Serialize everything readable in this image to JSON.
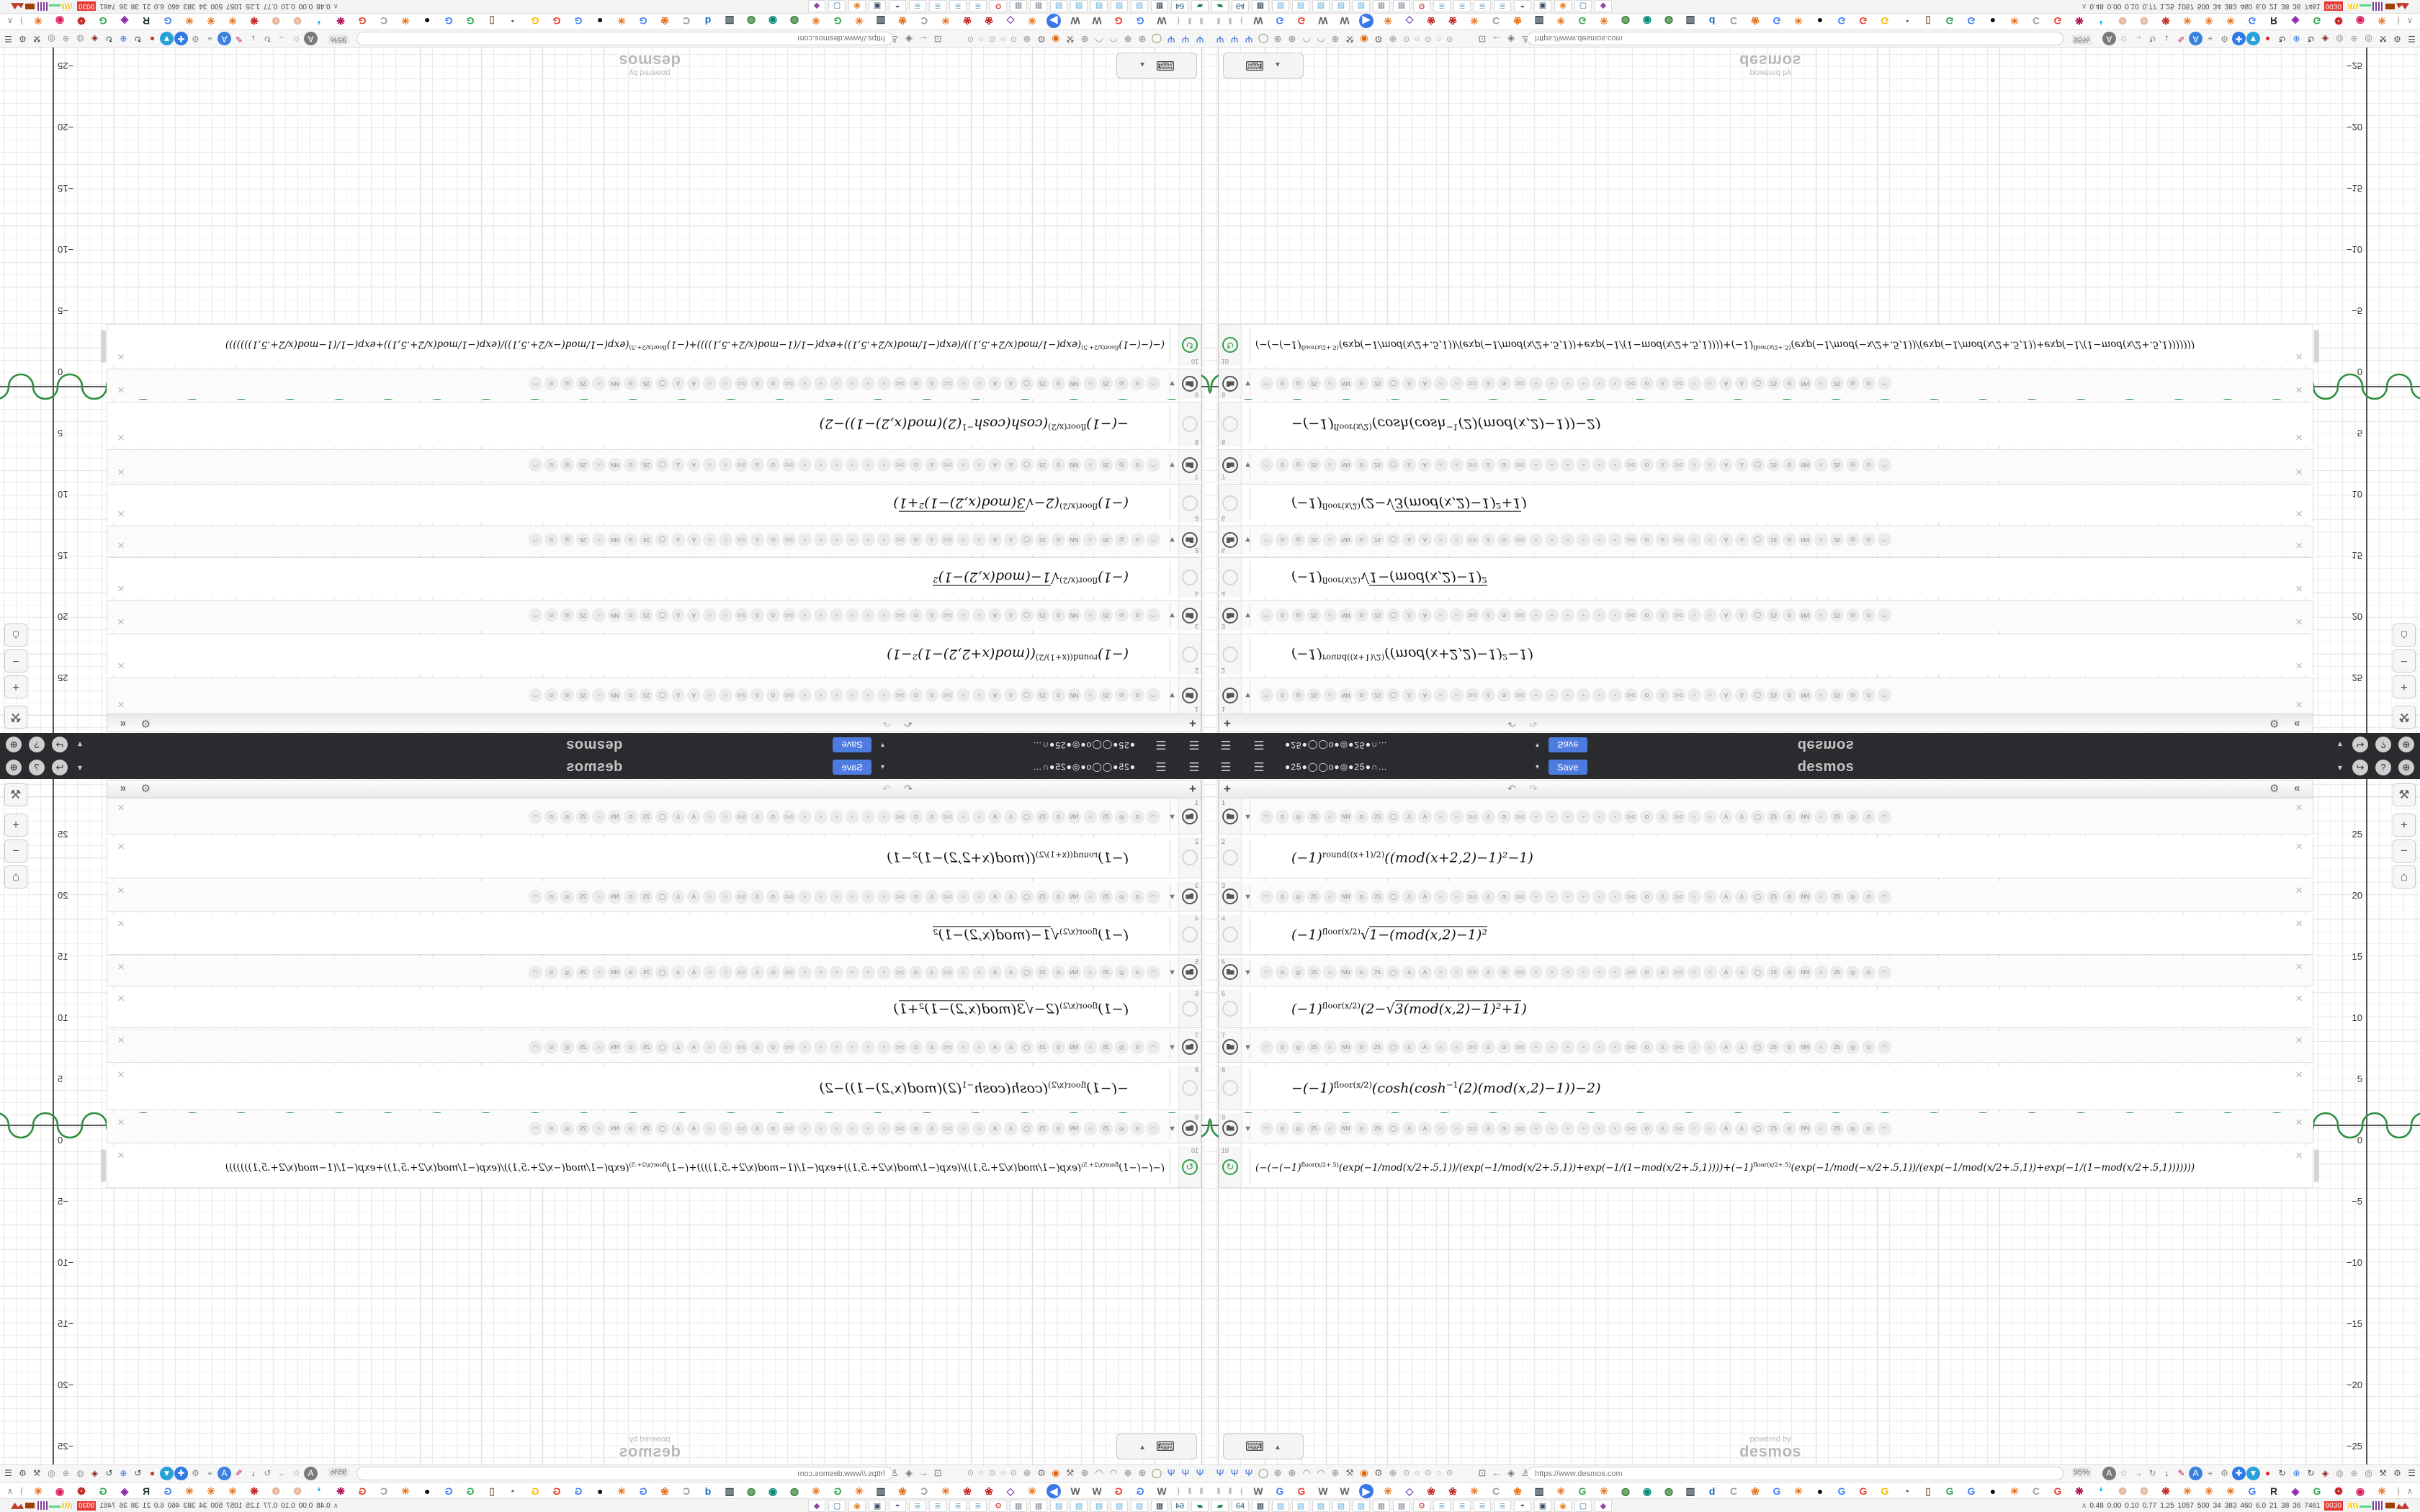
{
  "navbar": {
    "menu_icon": "☰",
    "title_dots": "●25●◯◯o●◎●25●∩…",
    "caret": "▾",
    "save_label": "Save",
    "brand": "desmos",
    "right_icons": [
      "▾",
      "↪",
      "?",
      "⊕"
    ],
    "bg_color": "#2a2b2e",
    "save_color": "#4d7be0"
  },
  "panel": {
    "header": {
      "add": "+",
      "undo": "↶",
      "redo": "↷",
      "gear": "⚙",
      "collapse": "«"
    },
    "delete_icon": "×",
    "folder_caret": "▼",
    "folder_tokens": [
      "◠",
      "⊙",
      "◎",
      "25",
      "∩",
      "NN",
      "⊙",
      "25",
      "◯",
      "♙",
      "A",
      "∩",
      "∩",
      "⊃⊂",
      "♙",
      "⊙",
      "⊃⊂",
      "∘",
      "∘",
      "∘",
      "∘",
      "∘",
      "∘",
      "⊃⊂",
      "⊙",
      "♙",
      "⊃⊂",
      "∩",
      "∩",
      "A",
      "♙",
      "◯",
      "25",
      "⊙",
      "NN",
      "∩",
      "25",
      "◎",
      "⊙",
      "◠"
    ],
    "rows": [
      {
        "type": "folder",
        "num": "1"
      },
      {
        "type": "math",
        "num": "2",
        "formula": [
          [
            "t",
            "(−1)"
          ],
          [
            "s",
            "round((x+1)/2)"
          ],
          [
            "t",
            "((mod(x+2,2)−1)²−1)"
          ]
        ]
      },
      {
        "type": "folder",
        "num": "3"
      },
      {
        "type": "math",
        "num": "4",
        "formula": [
          [
            "t",
            "(−1)"
          ],
          [
            "s",
            "floor(x/2)"
          ],
          [
            "t",
            "√"
          ],
          [
            "r",
            "1−(mod(x,2)−1)²"
          ]
        ]
      },
      {
        "type": "folder",
        "num": "5"
      },
      {
        "type": "math",
        "num": "6",
        "formula": [
          [
            "t",
            "(−1)"
          ],
          [
            "s",
            "floor(x/2)"
          ],
          [
            "t",
            "(2−"
          ],
          [
            "t",
            "√"
          ],
          [
            "r",
            "3(mod(x,2)−1)²+1"
          ],
          [
            "t",
            ")"
          ]
        ]
      },
      {
        "type": "folder",
        "num": "7"
      },
      {
        "type": "math",
        "num": "8",
        "formula": [
          [
            "t",
            "−(−1)"
          ],
          [
            "s",
            "floor(x/2)"
          ],
          [
            "t",
            "(cosh(cosh"
          ],
          [
            "s",
            "−1"
          ],
          [
            "t",
            "(2)(mod(x,2)−1))−2)"
          ]
        ]
      },
      {
        "type": "folder",
        "num": "9"
      },
      {
        "type": "math",
        "num": "10",
        "long": true,
        "icon": "green",
        "formula": [
          [
            "t",
            "(−(−(−1)"
          ],
          [
            "s",
            "floor(x/2+.5)"
          ],
          [
            "t",
            "(exp(−1/mod(x/2+.5,1))/(exp(−1/mod(x/2+.5,1))+exp(−1/(1−mod(x/2+.5,1))))+(−1)"
          ],
          [
            "s",
            "floor(x/2+.5)"
          ],
          [
            "t",
            "(exp(−1/mod(−x/2+.5,1))/(exp(−1/mod(x/2+.5,1))+exp(−1/(1−mod(x/2+.5,1)))))))"
          ]
        ]
      }
    ],
    "green_icon": "↻"
  },
  "graph": {
    "y_ticks": [
      "25",
      "20",
      "15",
      "10",
      "5",
      "0",
      "−5",
      "−10",
      "−15",
      "−20",
      "−25"
    ],
    "controls": {
      "wrench": "⚒",
      "zoom_in": "+",
      "zoom_out": "−",
      "home": "⌂"
    },
    "watermark_line1": "powered by",
    "watermark_line2": "desmos",
    "curve_color": "#2f8f3f"
  },
  "keyboard_button": {
    "icon": "⌨",
    "caret": "▲"
  },
  "browser": {
    "toolbar_left": [
      {
        "g": "Ψ",
        "c": "#3b6fd4"
      },
      {
        "g": "Ψ",
        "c": "#3b6fd4"
      },
      {
        "g": "Ψ",
        "c": "#3b6fd4"
      },
      {
        "g": "◯",
        "c": "#7a8a3a"
      },
      {
        "g": "⊕",
        "c": "#8a8a8a"
      },
      {
        "g": "⊕",
        "c": "#8a8a8a"
      },
      {
        "g": "◠",
        "c": "#8a8a8a"
      },
      {
        "g": "◠",
        "c": "#8a8a8a"
      },
      {
        "g": "⊕",
        "c": "#8a8a8a"
      },
      {
        "g": "⚒",
        "c": "#777"
      },
      {
        "g": "◉",
        "c": "#e66000"
      },
      {
        "g": "⚙",
        "c": "#777"
      },
      {
        "g": "⊕",
        "c": "#999"
      }
    ],
    "tab_dots": "⊙ ○ ⊙ ○ ⊙",
    "nav_cluster": [
      {
        "g": "⊡",
        "c": "#777"
      },
      {
        "g": "←",
        "c": "#777"
      },
      {
        "g": "◈",
        "c": "#777"
      },
      {
        "g": "♙",
        "c": "#777"
      }
    ],
    "url": "https://www.desmos.com",
    "zoom_badge": "95%",
    "toolbar_right": [
      {
        "g": "A",
        "c": "#fff",
        "b": "#7a7a7a"
      },
      {
        "g": "☆",
        "c": "#888"
      },
      {
        "g": "→",
        "c": "#888"
      },
      {
        "g": "↻",
        "c": "#888"
      },
      {
        "g": "↓",
        "c": "#444"
      },
      {
        "g": "✎",
        "c": "#c2185b"
      },
      {
        "g": "A",
        "c": "#fff",
        "b": "#3b82e0"
      },
      {
        "g": "⌖",
        "c": "#777"
      },
      {
        "g": "⚙",
        "c": "#888"
      },
      {
        "g": "✚",
        "c": "#fff",
        "b": "#2f7ae5"
      },
      {
        "g": "▼",
        "c": "#fff",
        "b": "#29a0d8"
      },
      {
        "g": "●",
        "c": "#d32f2f"
      },
      {
        "g": "↻",
        "c": "#37474f"
      },
      {
        "g": "⊕",
        "c": "#3b82e0"
      },
      {
        "g": "↻",
        "c": "#37474f"
      },
      {
        "g": "◈",
        "c": "#8c1d18"
      },
      {
        "g": "◍",
        "c": "#9e9e9e"
      },
      {
        "g": "⊕",
        "c": "#9e9e9e"
      },
      {
        "g": "◎",
        "c": "#777"
      },
      {
        "g": "⚒",
        "c": "#555"
      },
      {
        "g": "⚙",
        "c": "#555"
      },
      {
        "g": "☰",
        "c": "#444"
      }
    ],
    "tab_nav_left": [
      "‖",
      "‖",
      "⟨"
    ],
    "tab_nav_right": [
      "⟩",
      "∧"
    ],
    "favicons": [
      {
        "g": "W",
        "c": "#616161"
      },
      {
        "g": "G",
        "c": "#4285f4"
      },
      {
        "g": "G",
        "c": "#ea4335"
      },
      {
        "g": "W",
        "c": "#616161"
      },
      {
        "g": "W",
        "c": "#616161"
      },
      {
        "g": "▶",
        "c": "#fff",
        "b": "#3b78e7"
      },
      {
        "g": "✳",
        "c": "#e8711a"
      },
      {
        "g": "◇",
        "c": "#7e57c2"
      },
      {
        "g": "❀",
        "c": "#c62828"
      },
      {
        "g": "❀",
        "c": "#c62828"
      },
      {
        "g": "✳",
        "c": "#e8711a"
      },
      {
        "g": "C",
        "c": "#9e9e9e"
      },
      {
        "g": "❀",
        "c": "#e8711a"
      },
      {
        "g": "▥",
        "c": "#37474f"
      },
      {
        "g": "✳",
        "c": "#e8711a"
      },
      {
        "g": "G",
        "c": "#34a853"
      },
      {
        "g": "✳",
        "c": "#e8711a"
      },
      {
        "g": "◍",
        "c": "#2e7d32"
      },
      {
        "g": "◉",
        "c": "#00897b"
      },
      {
        "g": "◍",
        "c": "#2e7d32"
      },
      {
        "g": "▥",
        "c": "#37474f"
      },
      {
        "g": "d",
        "c": "#1565c0"
      },
      {
        "g": "C",
        "c": "#9e9e9e"
      },
      {
        "g": "❀",
        "c": "#e8711a"
      },
      {
        "g": "G",
        "c": "#4285f4"
      },
      {
        "g": "✳",
        "c": "#e8711a"
      },
      {
        "g": "●",
        "c": "#111"
      },
      {
        "g": "G",
        "c": "#4285f4"
      },
      {
        "g": "G",
        "c": "#ea4335"
      },
      {
        "g": "G",
        "c": "#fbbc05"
      },
      {
        "g": "◔",
        "c": "#6d4c41"
      },
      {
        "g": "▯",
        "c": "#8d6e63"
      },
      {
        "g": "G",
        "c": "#34a853"
      },
      {
        "g": "G",
        "c": "#4285f4"
      },
      {
        "g": "●",
        "c": "#111"
      },
      {
        "g": "✳",
        "c": "#e8711a"
      },
      {
        "g": "C",
        "c": "#9e9e9e"
      },
      {
        "g": "G",
        "c": "#ea4335"
      },
      {
        "g": "❋",
        "c": "#ad1457"
      },
      {
        "g": "❛",
        "c": "#29b6f6"
      },
      {
        "g": "❁",
        "c": "#e5b8a0"
      },
      {
        "g": "❁",
        "c": "#e5b8a0"
      },
      {
        "g": "❋",
        "c": "#c62828"
      },
      {
        "g": "✳",
        "c": "#e8711a"
      },
      {
        "g": "✳",
        "c": "#e8711a"
      },
      {
        "g": "✳",
        "c": "#e8711a"
      },
      {
        "g": "G",
        "c": "#4285f4"
      },
      {
        "g": "R",
        "c": "#263238"
      },
      {
        "g": "◈",
        "c": "#8e24aa"
      },
      {
        "g": "G",
        "c": "#34a853"
      },
      {
        "g": "❁",
        "c": "#c62828"
      },
      {
        "g": "◉",
        "c": "#d81b60"
      },
      {
        "g": "✳",
        "c": "#e8711a"
      }
    ]
  },
  "taskbar": {
    "apps": [
      {
        "g": "▰",
        "c": "#1e8449"
      },
      {
        "g": "64",
        "c": "#1a5276"
      },
      {
        "g": "▦",
        "c": "#2e4053"
      },
      {
        "g": "▤",
        "c": "#5dade2"
      },
      {
        "g": "▤",
        "c": "#5dade2"
      },
      {
        "g": "▤",
        "c": "#5dade2"
      },
      {
        "g": "▤",
        "c": "#5dade2"
      },
      {
        "g": "▤",
        "c": "#5dade2"
      },
      {
        "g": "▦",
        "c": "#85929e"
      },
      {
        "g": "▦",
        "c": "#85929e"
      },
      {
        "g": "⚙",
        "c": "#c0392b"
      },
      {
        "g": "≣",
        "c": "#7fb3d5"
      },
      {
        "g": "≣",
        "c": "#7fb3d5"
      },
      {
        "g": "≣",
        "c": "#7fb3d5"
      },
      {
        "g": "≣",
        "c": "#7fb3d5"
      },
      {
        "g": "◓",
        "c": "#6c3483"
      },
      {
        "g": "▣",
        "c": "#34495e"
      },
      {
        "g": "◉",
        "c": "#e67e22"
      },
      {
        "g": "▢",
        "c": "#2874a6"
      },
      {
        "g": "◆",
        "c": "#8e44ad"
      }
    ],
    "chevron": "∧",
    "stats": [
      "0.48",
      "0.00",
      "0.10",
      "0.77",
      "1.25",
      "1057",
      "500",
      "34",
      "383",
      "460",
      "6.0",
      "21",
      "38",
      "36",
      "7461"
    ],
    "stats_badge": "9030"
  }
}
